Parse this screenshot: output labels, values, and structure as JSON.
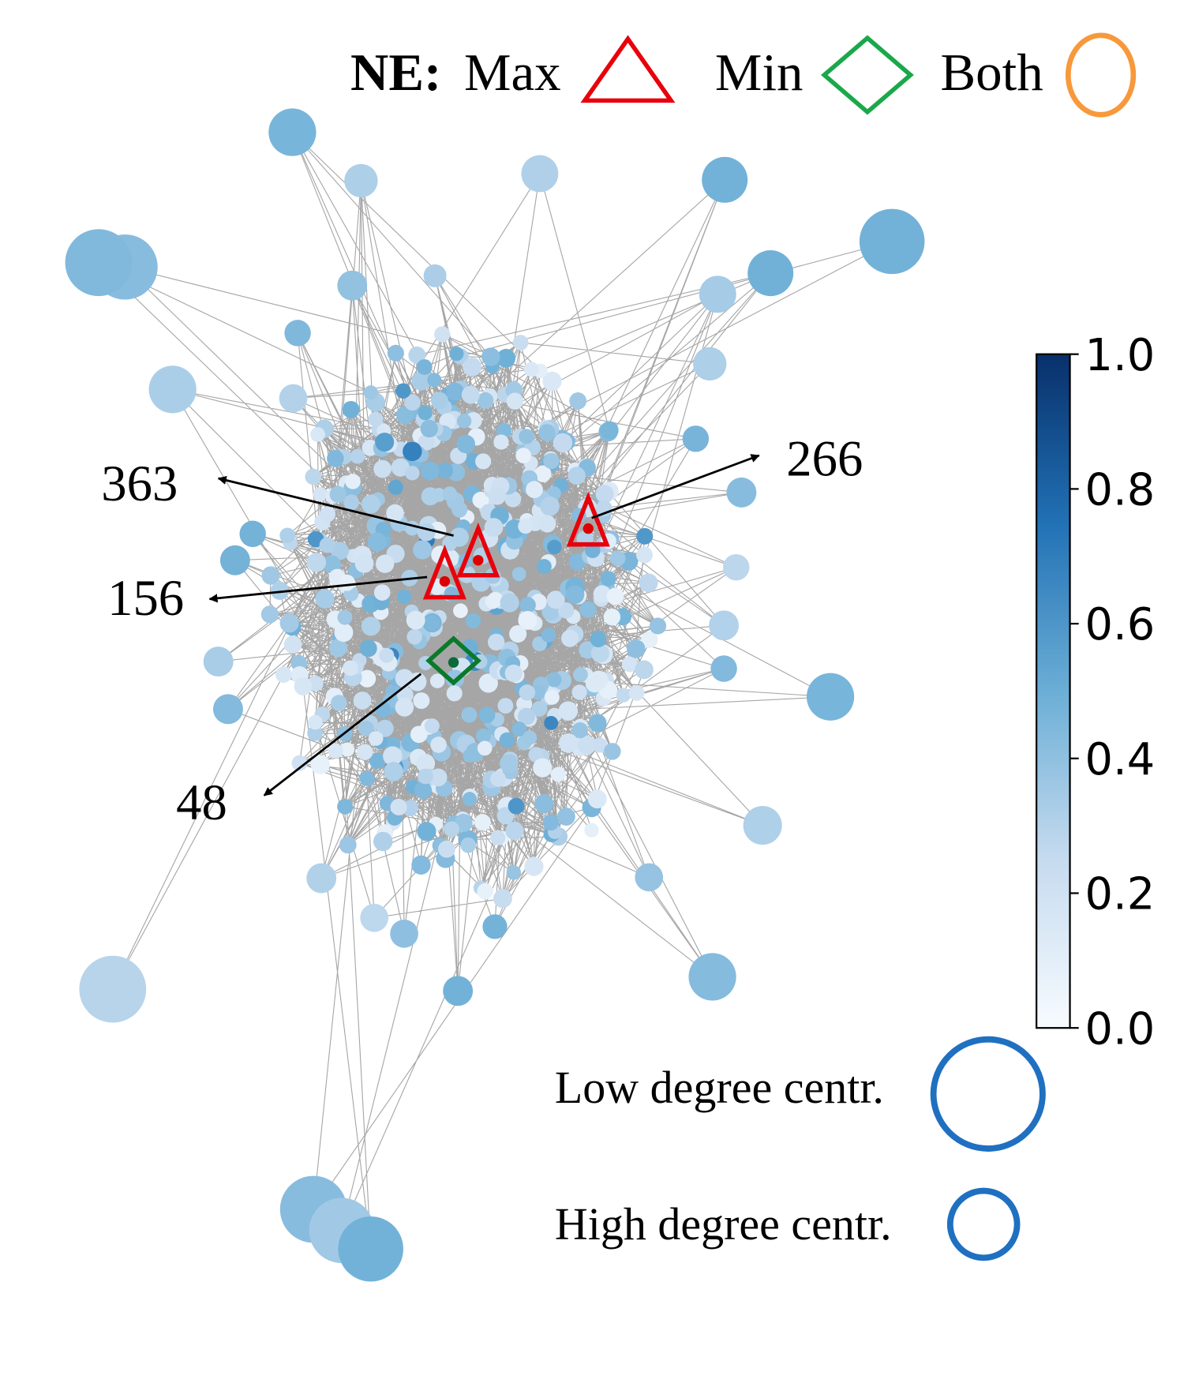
{
  "legend": {
    "title": "NE:",
    "items": [
      "Max",
      "Min",
      "Both"
    ]
  },
  "annotations": [
    "363",
    "156",
    "266",
    "48"
  ],
  "colorbar": {
    "ylim": [
      0,
      1
    ],
    "ticks": [
      {
        "value": 0,
        "label": "0.0"
      },
      0.2,
      0.4,
      0.6,
      0.8,
      {
        "value": 1,
        "label": "1.0"
      }
    ]
  },
  "size_legend": {
    "low": "Low degree centr.",
    "high": "High degree centr."
  }
}
